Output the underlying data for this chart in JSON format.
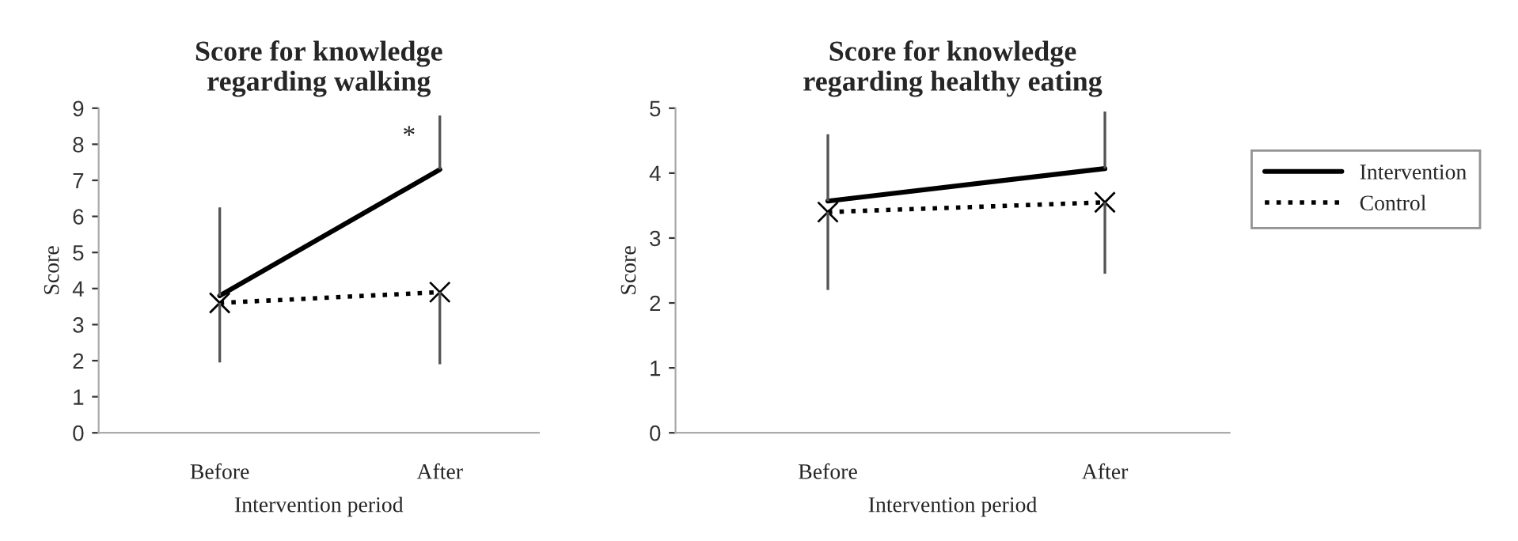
{
  "chart_data": [
    {
      "type": "line",
      "title": "Score for knowledge\nregarding walking",
      "xlabel": "Intervention period",
      "ylabel": "Score",
      "categories": [
        "Before",
        "After"
      ],
      "ylim": [
        0,
        9
      ],
      "yticks": [
        0,
        1,
        2,
        3,
        4,
        5,
        6,
        7,
        8,
        9
      ],
      "grid": false,
      "series": [
        {
          "color": "#000000",
          "values": [
            3.8,
            7.3
          ],
          "errors": [
            [
              3.8,
              6.25
            ],
            [
              7.3,
              8.8
            ]
          ],
          "line_style": "solid",
          "marker": "none"
        },
        {
          "color": "#000000",
          "values": [
            3.6,
            3.9
          ],
          "errors": [
            [
              1.95,
              3.6
            ],
            [
              1.9,
              3.9
            ]
          ],
          "line_style": "dotted",
          "marker": "cross"
        }
      ],
      "annotations": [
        {
          "text": "*",
          "x": "After",
          "y": 8.2
        }
      ]
    },
    {
      "type": "line",
      "title": "Score for knowledge\nregarding healthy eating",
      "xlabel": "Intervention period",
      "ylabel": "Score",
      "categories": [
        "Before",
        "After"
      ],
      "ylim": [
        0,
        5
      ],
      "yticks": [
        0,
        1,
        2,
        3,
        4,
        5
      ],
      "grid": false,
      "legend": "right",
      "series": [
        {
          "name": "Intervention",
          "color": "#000000",
          "values": [
            3.57,
            4.07
          ],
          "errors": [
            [
              3.57,
              4.6
            ],
            [
              4.07,
              4.95
            ]
          ],
          "line_style": "solid",
          "marker": "none"
        },
        {
          "name": "Control",
          "color": "#000000",
          "values": [
            3.4,
            3.55
          ],
          "errors": [
            [
              2.2,
              3.4
            ],
            [
              2.45,
              3.55
            ]
          ],
          "line_style": "dotted",
          "marker": "cross"
        }
      ]
    }
  ]
}
